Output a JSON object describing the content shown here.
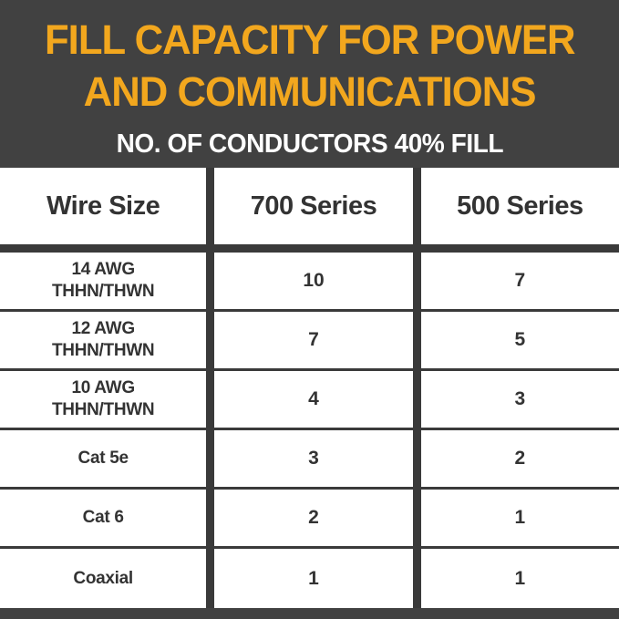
{
  "header": {
    "title_line1": "FILL CAPACITY FOR POWER",
    "title_line2": "AND COMMUNICATIONS",
    "subtitle": "NO. OF CONDUCTORS 40% FILL"
  },
  "table": {
    "columns": [
      "Wire Size",
      "700 Series",
      "500 Series"
    ],
    "rows": [
      {
        "wire_size": "14 AWG\nTHHN/THWN",
        "series_700": "10",
        "series_500": "7"
      },
      {
        "wire_size": "12 AWG\nTHHN/THWN",
        "series_700": "7",
        "series_500": "5"
      },
      {
        "wire_size": "10 AWG\nTHHN/THWN",
        "series_700": "4",
        "series_500": "3"
      },
      {
        "wire_size": "Cat 5e",
        "series_700": "3",
        "series_500": "2"
      },
      {
        "wire_size": "Cat 6",
        "series_700": "2",
        "series_500": "1"
      },
      {
        "wire_size": "Coaxial",
        "series_700": "1",
        "series_500": "1"
      }
    ]
  },
  "colors": {
    "background": "#414141",
    "accent_gold": "#f2a71e",
    "table_line": "#3a3a3a",
    "table_text": "#333333",
    "subtitle_text": "#ffffff",
    "table_background": "#ffffff"
  },
  "chart_data": {
    "type": "table",
    "title": "FILL CAPACITY FOR POWER AND COMMUNICATIONS",
    "subtitle": "NO. OF CONDUCTORS 40% FILL",
    "columns": [
      "Wire Size",
      "700 Series",
      "500 Series"
    ],
    "rows": [
      [
        "14 AWG THHN/THWN",
        10,
        7
      ],
      [
        "12 AWG THHN/THWN",
        7,
        5
      ],
      [
        "10 AWG THHN/THWN",
        4,
        3
      ],
      [
        "Cat 5e",
        3,
        2
      ],
      [
        "Cat 6",
        2,
        1
      ],
      [
        "Coaxial",
        1,
        1
      ]
    ],
    "layout_hints": {
      "header_on_dark_background": true,
      "grid": "thick vertical dividers, thin horizontal separators",
      "legend_position": "none"
    }
  }
}
